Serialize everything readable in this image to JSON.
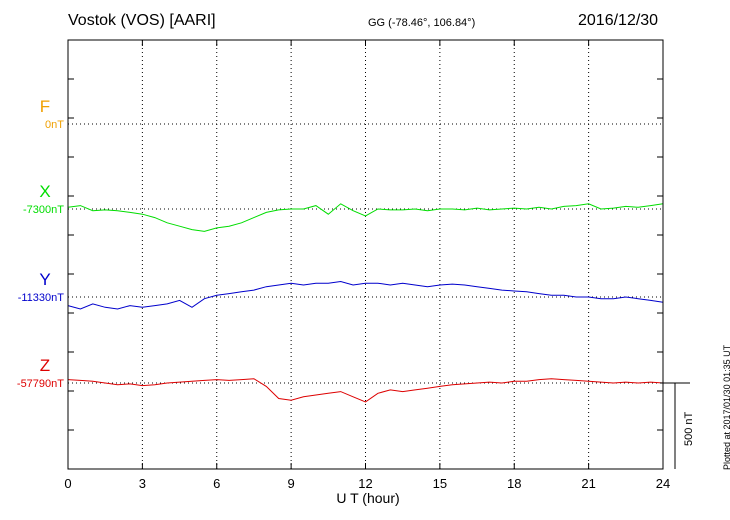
{
  "header": {
    "station": "Vostok (VOS)  [AARI]",
    "coords": "GG (-78.46°, 106.84°)",
    "date": "2016/12/30"
  },
  "plotted_note": "Plotted at 2017/01/30 01:35 UT",
  "scale_bar_label": "500 nT",
  "colors": {
    "F": "#f0a000",
    "X": "#00dd00",
    "Y": "#0000cc",
    "Z": "#dd0000"
  },
  "chart_data": {
    "type": "line",
    "xlabel": "U T (hour)",
    "xlim": [
      0,
      24
    ],
    "xticks": [
      0,
      3,
      6,
      9,
      12,
      15,
      18,
      21,
      24
    ],
    "scale_bar_nT": 500,
    "grid": true,
    "series": [
      {
        "name": "F",
        "baseline_label": "0nT",
        "baseline": 0,
        "t": [],
        "v": []
      },
      {
        "name": "X",
        "baseline_label": "-7300nT",
        "baseline": -7300,
        "t": [
          0,
          0.5,
          1,
          1.5,
          2,
          2.5,
          3,
          3.5,
          4,
          4.5,
          5,
          5.5,
          6,
          6.5,
          7,
          7.5,
          8,
          8.5,
          9,
          9.5,
          10,
          10.5,
          11,
          11.5,
          12,
          12.5,
          13,
          13.5,
          14,
          14.5,
          15,
          15.5,
          16,
          16.5,
          17,
          17.5,
          18,
          18.5,
          19,
          19.5,
          20,
          20.5,
          21,
          21.5,
          22,
          22.5,
          23,
          23.5,
          24
        ],
        "v": [
          -7290,
          -7280,
          -7310,
          -7305,
          -7310,
          -7320,
          -7330,
          -7350,
          -7380,
          -7400,
          -7420,
          -7430,
          -7410,
          -7400,
          -7380,
          -7350,
          -7320,
          -7305,
          -7300,
          -7300,
          -7280,
          -7330,
          -7270,
          -7310,
          -7340,
          -7300,
          -7305,
          -7305,
          -7300,
          -7310,
          -7300,
          -7300,
          -7305,
          -7295,
          -7305,
          -7300,
          -7295,
          -7300,
          -7290,
          -7300,
          -7285,
          -7280,
          -7270,
          -7300,
          -7295,
          -7285,
          -7290,
          -7280,
          -7270
        ]
      },
      {
        "name": "Y",
        "baseline_label": "-11330nT",
        "baseline": -11330,
        "t": [
          0,
          0.5,
          1,
          1.5,
          2,
          2.5,
          3,
          3.5,
          4,
          4.5,
          5,
          5.5,
          6,
          6.5,
          7,
          7.5,
          8,
          8.5,
          9,
          9.5,
          10,
          10.5,
          11,
          11.5,
          12,
          12.5,
          13,
          13.5,
          14,
          14.5,
          15,
          15.5,
          16,
          16.5,
          17,
          17.5,
          18,
          18.5,
          19,
          19.5,
          20,
          20.5,
          21,
          21.5,
          22,
          22.5,
          23,
          23.5,
          24
        ],
        "v": [
          -11380,
          -11400,
          -11370,
          -11390,
          -11400,
          -11380,
          -11390,
          -11380,
          -11370,
          -11350,
          -11390,
          -11340,
          -11320,
          -11310,
          -11300,
          -11290,
          -11270,
          -11260,
          -11250,
          -11260,
          -11250,
          -11250,
          -11240,
          -11260,
          -11250,
          -11250,
          -11260,
          -11250,
          -11260,
          -11270,
          -11260,
          -11255,
          -11260,
          -11270,
          -11280,
          -11290,
          -11295,
          -11300,
          -11310,
          -11320,
          -11320,
          -11330,
          -11330,
          -11340,
          -11340,
          -11330,
          -11340,
          -11350,
          -11360
        ]
      },
      {
        "name": "Z",
        "baseline_label": "-57790nT",
        "baseline": -57790,
        "t": [
          0,
          0.5,
          1,
          1.5,
          2,
          2.5,
          3,
          3.5,
          4,
          4.5,
          5,
          5.5,
          6,
          6.5,
          7,
          7.5,
          8,
          8.5,
          9,
          9.5,
          10,
          10.5,
          11,
          11.5,
          12,
          12.5,
          13,
          13.5,
          14,
          14.5,
          15,
          15.5,
          16,
          16.5,
          17,
          17.5,
          18,
          18.5,
          19,
          19.5,
          20,
          20.5,
          21,
          21.5,
          22,
          22.5,
          23,
          23.5,
          24
        ],
        "v": [
          -57770,
          -57775,
          -57780,
          -57790,
          -57800,
          -57795,
          -57805,
          -57800,
          -57790,
          -57785,
          -57780,
          -57775,
          -57770,
          -57775,
          -57770,
          -57765,
          -57810,
          -57880,
          -57890,
          -57870,
          -57860,
          -57850,
          -57840,
          -57870,
          -57900,
          -57850,
          -57830,
          -57840,
          -57830,
          -57820,
          -57810,
          -57800,
          -57795,
          -57790,
          -57785,
          -57790,
          -57780,
          -57780,
          -57770,
          -57765,
          -57770,
          -57775,
          -57780,
          -57785,
          -57790,
          -57785,
          -57790,
          -57785,
          -57790
        ]
      }
    ]
  }
}
